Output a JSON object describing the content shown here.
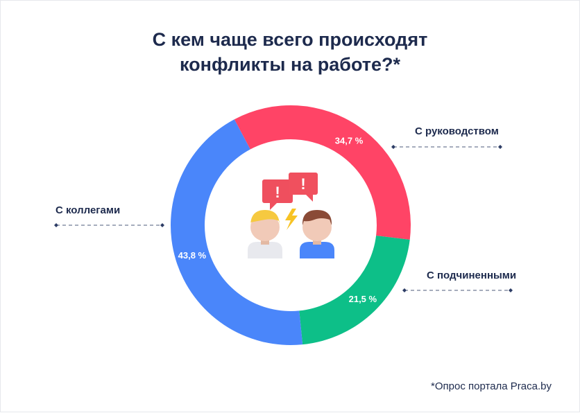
{
  "chart_data": {
    "type": "pie",
    "donut": true,
    "title_lines": [
      "С кем чаще всего происходят",
      "конфликты на работе?*"
    ],
    "slices": [
      {
        "label": "С руководством",
        "value": 34.7,
        "value_label": "34,7 %",
        "color": "#ff4466"
      },
      {
        "label": "С подчиненными",
        "value": 21.5,
        "value_label": "21,5 %",
        "color": "#0dbf88"
      },
      {
        "label": "С коллегами",
        "value": 43.8,
        "value_label": "43,8 %",
        "color": "#4a86fa"
      }
    ],
    "legend": "callouts"
  },
  "footnote": "*Опрос портала Praca.by",
  "illustration": {
    "icons": [
      "speech-bubble-exclamation-icon",
      "speech-bubble-exclamation-icon",
      "lightning-icon",
      "person-blonde-icon",
      "person-brown-hair-icon"
    ],
    "bubble_text": "!"
  }
}
